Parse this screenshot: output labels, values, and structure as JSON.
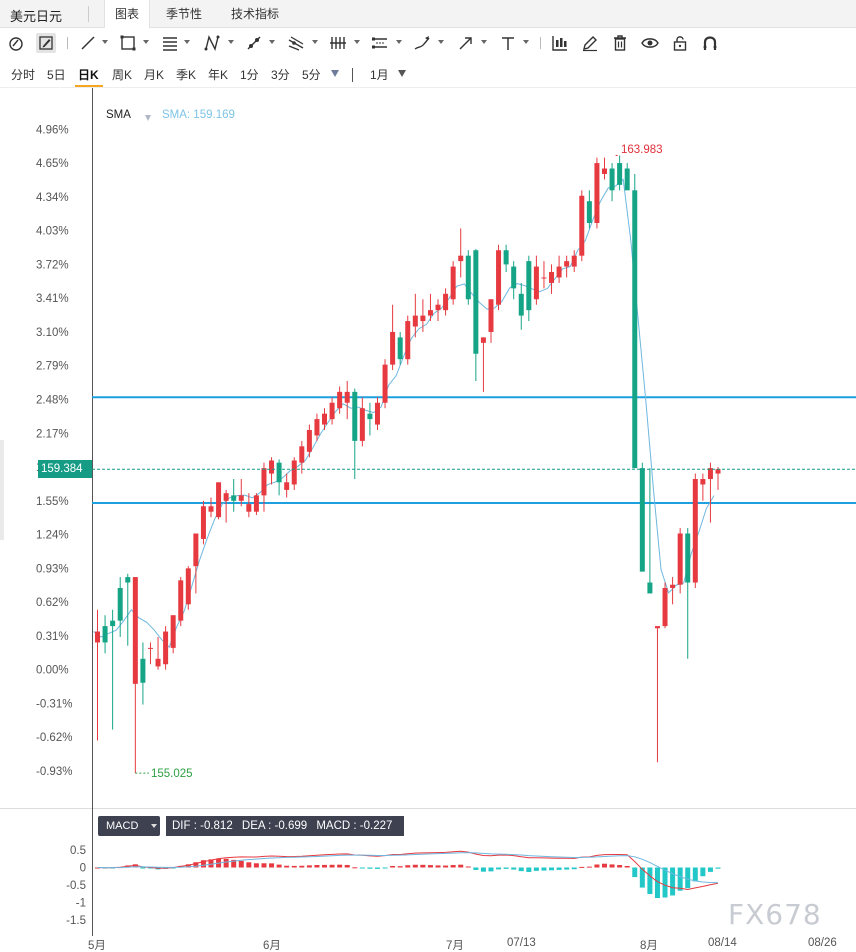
{
  "tabs": {
    "symbol": "美元日元",
    "items": [
      {
        "label": "图表",
        "active": true
      },
      {
        "label": "季节性",
        "active": false
      },
      {
        "label": "技术指标",
        "active": false
      }
    ]
  },
  "toolbar": {
    "icons": [
      "crosshair-icon",
      "pencil-icon",
      "line-icon",
      "rectangle-icon",
      "fib-icon",
      "pattern-icon",
      "ray-icon",
      "fork-icon",
      "bars-icon",
      "channel-icon",
      "brush-icon",
      "arrow-icon",
      "text-icon",
      "chart-type-icon",
      "edit-icon",
      "trash-icon",
      "eye-icon",
      "lock-icon",
      "magnet-icon"
    ]
  },
  "periods": {
    "items": [
      "分时",
      "5日",
      "日K",
      "周K",
      "月K",
      "季K",
      "年K",
      "1分",
      "3分",
      "5分"
    ],
    "active": "日K",
    "range": "1月"
  },
  "main_chart": {
    "indicator_name": "SMA",
    "indicator_value": "SMA: 159.169",
    "current_price": "159.384",
    "high_label": "163.983",
    "low_label": "155.025",
    "accent_up": "#e63940",
    "accent_down": "#15a486",
    "sma_color": "#6fb8e0",
    "hline_color": "#1ca0e0"
  },
  "chart_data": [
    {
      "type": "candlestick",
      "y_tick_labels": [
        "4.96%",
        "4.65%",
        "4.34%",
        "4.03%",
        "3.72%",
        "3.41%",
        "3.10%",
        "2.79%",
        "2.48%",
        "2.17%",
        "1.86%",
        "1.55%",
        "1.24%",
        "0.93%",
        "0.62%",
        "0.31%",
        "0.00%",
        "-0.31%",
        "-0.62%",
        "-0.93%"
      ],
      "x_tick_labels": [
        "5月",
        "6月",
        "7月",
        "07/13",
        "8月",
        "08/14",
        "08/26"
      ],
      "ylim_percent": [
        -1.0,
        5.1
      ],
      "horizontal_lines_percent": [
        2.5,
        1.53
      ],
      "current_percent": 1.84,
      "candles_percent": [
        [
          0.25,
          0.55,
          -0.65,
          0.35
        ],
        [
          0.4,
          0.5,
          0.15,
          0.25
        ],
        [
          0.45,
          0.55,
          -0.55,
          0.4
        ],
        [
          0.75,
          0.85,
          0.3,
          0.45
        ],
        [
          0.85,
          0.88,
          0.22,
          0.8
        ],
        [
          -0.13,
          0.85,
          -0.95,
          0.85
        ],
        [
          0.1,
          0.25,
          -0.32,
          -0.12
        ],
        [
          0.2,
          0.25,
          0.05,
          0.2
        ],
        [
          0.03,
          0.3,
          0.0,
          0.1
        ],
        [
          0.05,
          0.4,
          0.0,
          0.35
        ],
        [
          0.2,
          0.5,
          0.15,
          0.5
        ],
        [
          0.45,
          0.85,
          0.4,
          0.82
        ],
        [
          0.6,
          0.95,
          0.55,
          0.93
        ],
        [
          0.95,
          1.25,
          0.7,
          1.25
        ],
        [
          1.2,
          1.55,
          1.15,
          1.5
        ],
        [
          1.45,
          1.58,
          1.4,
          1.5
        ],
        [
          1.4,
          1.72,
          1.38,
          1.72
        ],
        [
          1.55,
          1.65,
          1.35,
          1.62
        ],
        [
          1.6,
          1.75,
          1.45,
          1.55
        ],
        [
          1.55,
          1.75,
          1.5,
          1.6
        ],
        [
          1.45,
          1.62,
          1.4,
          1.52
        ],
        [
          1.45,
          1.62,
          1.42,
          1.6
        ],
        [
          1.6,
          1.9,
          1.45,
          1.85
        ],
        [
          1.8,
          1.95,
          1.7,
          1.92
        ],
        [
          1.9,
          1.93,
          1.6,
          1.72
        ],
        [
          1.65,
          1.8,
          1.58,
          1.72
        ],
        [
          1.7,
          1.95,
          1.65,
          1.92
        ],
        [
          1.9,
          2.1,
          1.8,
          2.05
        ],
        [
          2.0,
          2.25,
          1.95,
          2.2
        ],
        [
          2.15,
          2.35,
          2.1,
          2.3
        ],
        [
          2.25,
          2.4,
          2.2,
          2.35
        ],
        [
          2.3,
          2.5,
          2.25,
          2.45
        ],
        [
          2.4,
          2.6,
          2.35,
          2.55
        ],
        [
          2.45,
          2.65,
          2.3,
          2.55
        ],
        [
          2.55,
          2.58,
          1.75,
          2.1
        ],
        [
          2.1,
          2.5,
          2.05,
          2.4
        ],
        [
          2.35,
          2.45,
          2.15,
          2.3
        ],
        [
          2.25,
          2.5,
          2.2,
          2.45
        ],
        [
          2.45,
          2.85,
          2.4,
          2.8
        ],
        [
          2.8,
          3.35,
          2.75,
          3.1
        ],
        [
          3.05,
          3.1,
          2.8,
          2.85
        ],
        [
          2.85,
          3.25,
          2.8,
          3.2
        ],
        [
          3.15,
          3.45,
          3.05,
          3.25
        ],
        [
          3.2,
          3.4,
          3.1,
          3.25
        ],
        [
          3.25,
          3.45,
          3.2,
          3.3
        ],
        [
          3.3,
          3.4,
          3.2,
          3.35
        ],
        [
          3.3,
          3.5,
          3.25,
          3.45
        ],
        [
          3.4,
          3.75,
          3.35,
          3.7
        ],
        [
          3.75,
          4.05,
          3.6,
          3.8
        ],
        [
          3.8,
          3.85,
          3.35,
          3.4
        ],
        [
          3.85,
          3.86,
          2.65,
          2.9
        ],
        [
          3.0,
          3.05,
          2.55,
          3.05
        ],
        [
          3.1,
          3.4,
          3.0,
          3.4
        ],
        [
          3.35,
          3.9,
          3.3,
          3.85
        ],
        [
          3.85,
          3.9,
          3.65,
          3.72
        ],
        [
          3.7,
          3.75,
          3.4,
          3.5
        ],
        [
          3.45,
          3.55,
          3.12,
          3.25
        ],
        [
          3.75,
          3.8,
          3.2,
          3.3
        ],
        [
          3.4,
          3.8,
          3.35,
          3.7
        ],
        [
          3.6,
          3.75,
          3.5,
          3.6
        ],
        [
          3.55,
          3.72,
          3.45,
          3.65
        ],
        [
          3.6,
          3.8,
          3.55,
          3.7
        ],
        [
          3.7,
          3.8,
          3.6,
          3.75
        ],
        [
          3.7,
          3.85,
          3.65,
          3.8
        ],
        [
          3.8,
          4.4,
          3.75,
          4.35
        ],
        [
          4.3,
          4.4,
          4.05,
          4.1
        ],
        [
          4.1,
          4.7,
          4.05,
          4.65
        ],
        [
          4.55,
          4.7,
          4.5,
          4.6
        ],
        [
          4.6,
          4.65,
          4.3,
          4.4
        ],
        [
          4.65,
          4.72,
          4.4,
          4.45
        ],
        [
          4.6,
          4.65,
          4.4,
          4.4
        ],
        [
          4.4,
          4.55,
          2.4,
          1.85
        ],
        [
          1.85,
          1.9,
          0.9,
          0.9
        ],
        [
          0.8,
          1.85,
          0.7,
          0.7
        ],
        [
          0.38,
          0.38,
          -0.85,
          0.4
        ],
        [
          0.4,
          0.8,
          0.38,
          0.75
        ],
        [
          0.75,
          0.85,
          0.6,
          0.78
        ],
        [
          0.78,
          1.3,
          0.7,
          1.25
        ],
        [
          1.25,
          1.3,
          0.1,
          0.8
        ],
        [
          0.8,
          1.8,
          0.75,
          1.75
        ],
        [
          1.7,
          1.8,
          1.55,
          1.75
        ],
        [
          1.75,
          1.9,
          1.35,
          1.85
        ],
        [
          1.8,
          1.86,
          1.65,
          1.84
        ]
      ]
    },
    {
      "type": "bar+line",
      "indicator": "MACD",
      "dif": "-0.812",
      "dea": "-0.699",
      "macd": "-0.227",
      "y_tick_labels": [
        "0.5",
        "0",
        "-0.5",
        "-1",
        "-1.5"
      ],
      "ylim": [
        -1.6,
        0.8
      ]
    }
  ],
  "macd_panel": {
    "button_label": "MACD",
    "dif_text": "DIF : -0.812",
    "dea_text": "DEA : -0.699",
    "macd_text": "MACD : -0.227"
  },
  "x_axis": {
    "labels": [
      "5月",
      "6月",
      "7月",
      "07/13",
      "8月",
      "08/14",
      "08/26"
    ]
  },
  "watermark": "FX678"
}
